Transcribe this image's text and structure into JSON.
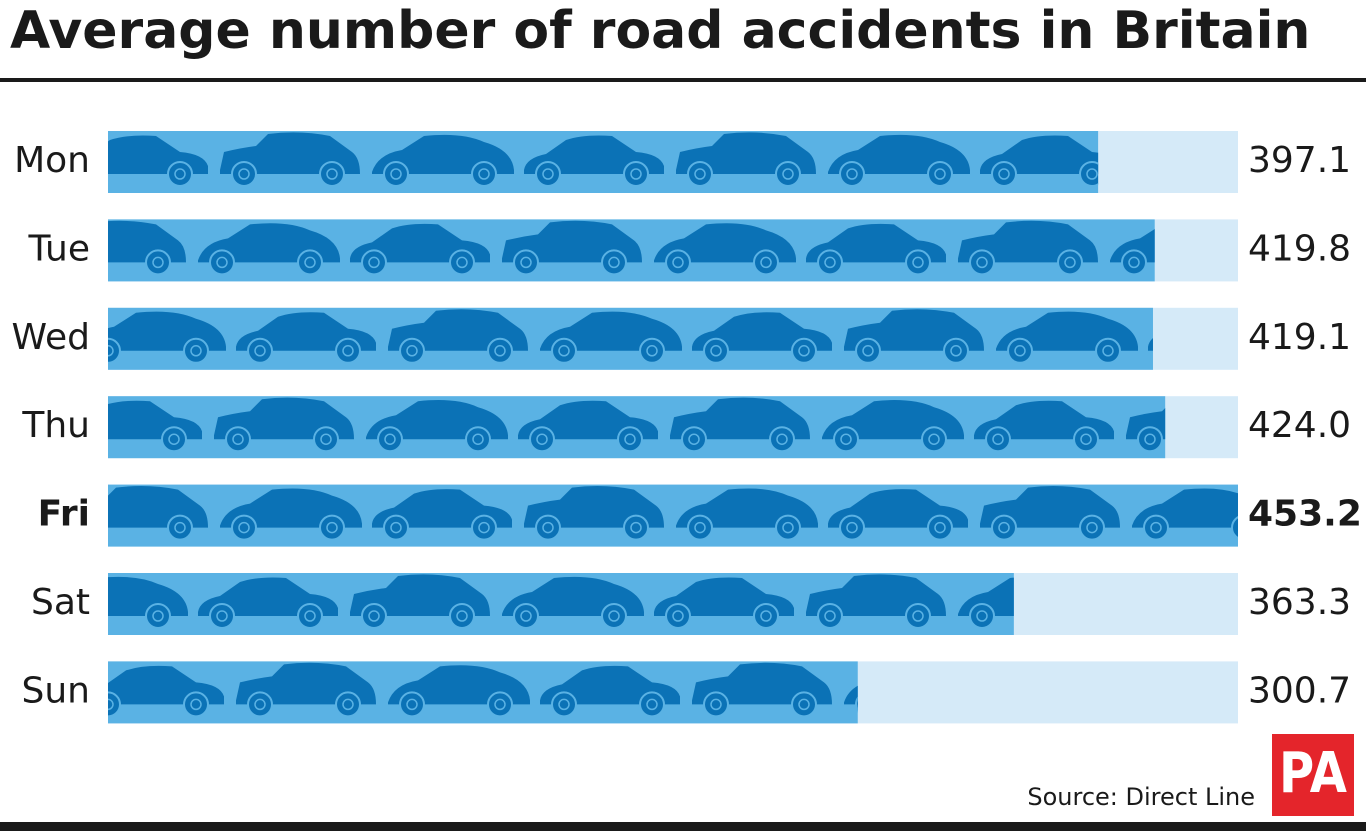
{
  "chart_data": {
    "type": "bar",
    "orientation": "horizontal",
    "title": "Average number of road accidents in Britain",
    "categories": [
      "Mon",
      "Tue",
      "Wed",
      "Thu",
      "Fri",
      "Sat",
      "Sun"
    ],
    "values": [
      397.1,
      419.8,
      419.1,
      424.0,
      453.2,
      363.3,
      300.7
    ],
    "value_labels": [
      "397.1",
      "419.8",
      "419.1",
      "424.0",
      "453.2",
      "363.3",
      "300.7"
    ],
    "xlim": [
      0,
      453.2
    ],
    "color": "#5ab2e4",
    "icon_color": "#0b72b6",
    "track_color": "#d5eaf8",
    "highlight_index": 4,
    "source": "Source: Direct Line",
    "logo": "PA"
  }
}
